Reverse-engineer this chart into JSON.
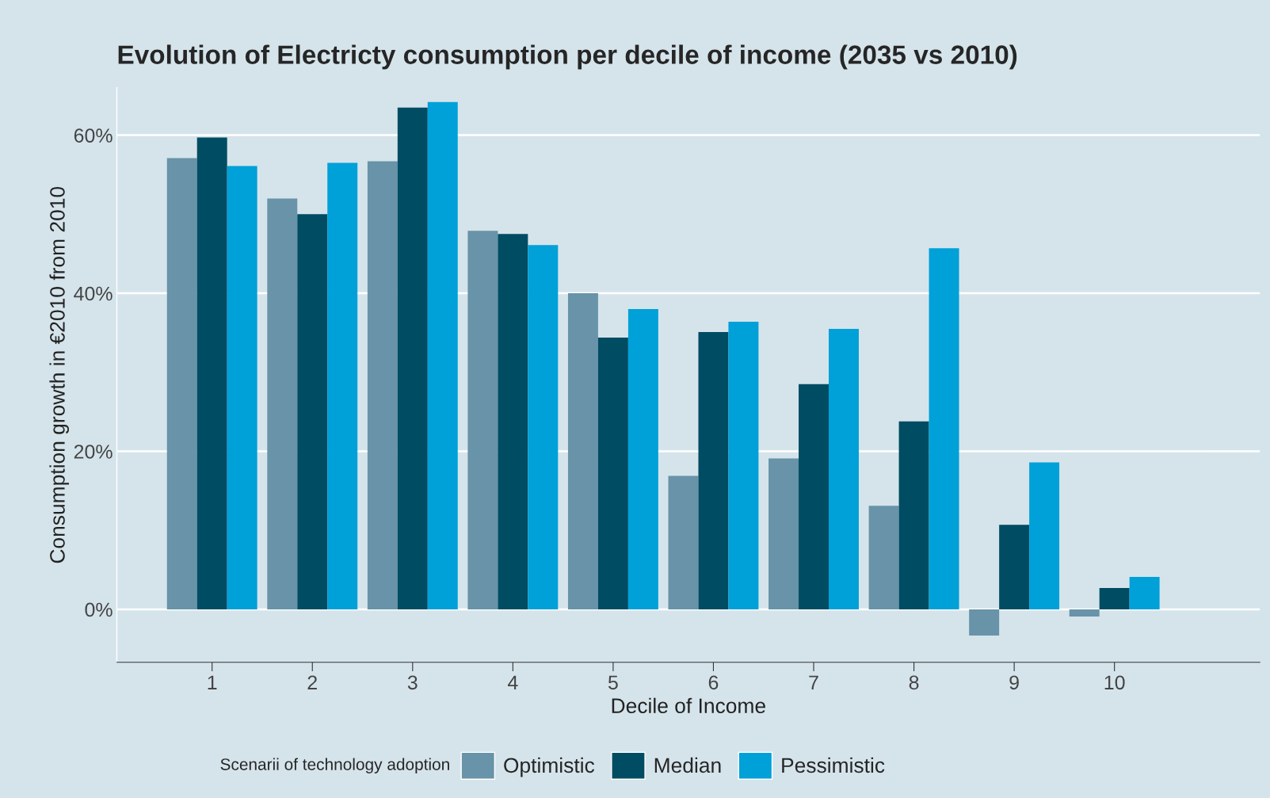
{
  "chart_data": {
    "type": "bar",
    "title": "Evolution of Electricty consumption per decile of income (2035 vs 2010)",
    "xlabel": "Decile of Income",
    "ylabel": "Consumption growth in €2010 from 2010",
    "legend_title": "Scenarii of technology adoption",
    "categories": [
      "1",
      "2",
      "3",
      "4",
      "5",
      "6",
      "7",
      "8",
      "9",
      "10"
    ],
    "series": [
      {
        "name": "Optimistic",
        "color": "#6893a8",
        "values": [
          57.1,
          52.0,
          56.7,
          47.9,
          40.0,
          16.9,
          19.1,
          13.1,
          -3.3,
          -0.9
        ]
      },
      {
        "name": "Median",
        "color": "#004c63",
        "values": [
          59.7,
          50.0,
          63.5,
          47.5,
          34.4,
          35.1,
          28.5,
          23.8,
          10.7,
          2.7
        ]
      },
      {
        "name": "Pessimistic",
        "color": "#00a0d8",
        "values": [
          56.1,
          56.5,
          64.2,
          46.1,
          38.0,
          36.4,
          35.5,
          45.7,
          18.6,
          4.1
        ]
      }
    ],
    "yticks": [
      {
        "value": 0,
        "label": "0%"
      },
      {
        "value": 20,
        "label": "20%"
      },
      {
        "value": 40,
        "label": "40%"
      },
      {
        "value": 60,
        "label": "60%"
      }
    ],
    "ylim": [
      -6.7,
      66
    ],
    "grid": "y",
    "legend": "bottom"
  }
}
